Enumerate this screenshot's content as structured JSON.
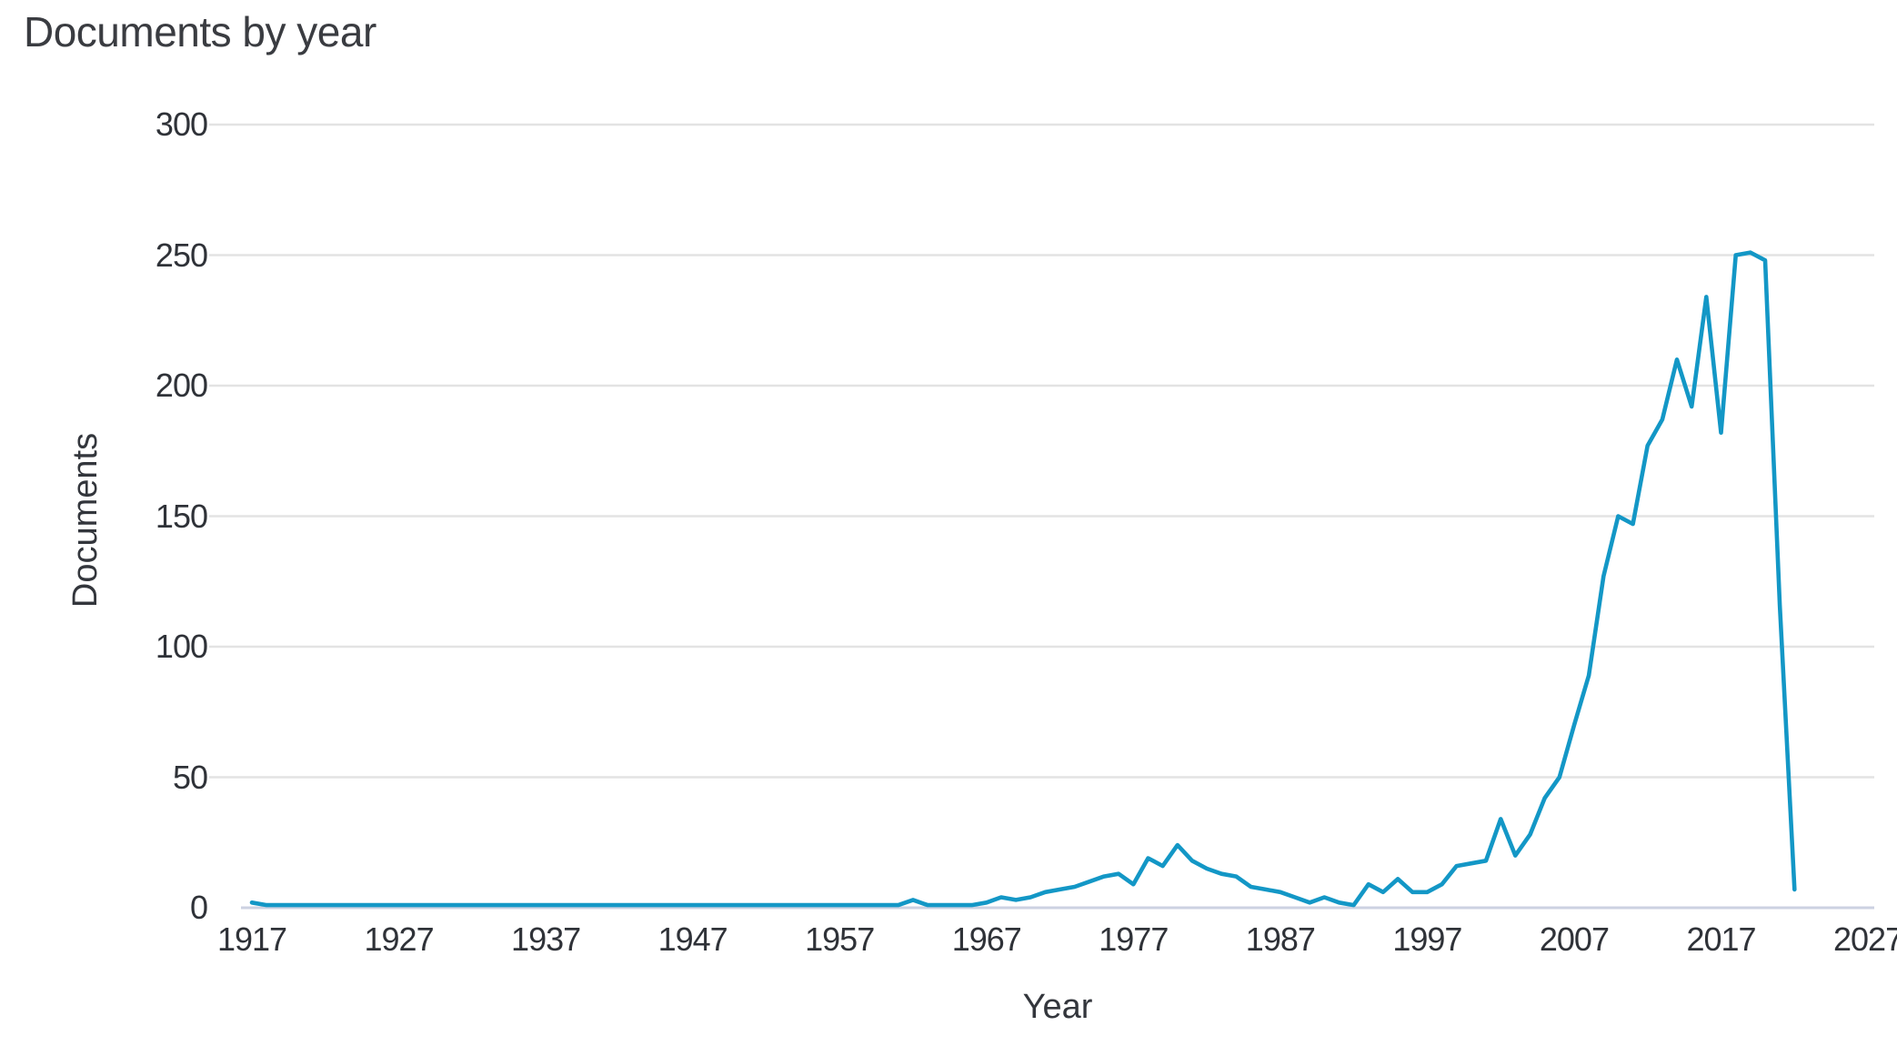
{
  "title": "Documents by year",
  "chart_data": {
    "type": "line",
    "title": "Documents by year",
    "xlabel": "Year",
    "ylabel": "Documents",
    "ylim": [
      0,
      300
    ],
    "xlim": [
      1917,
      2027
    ],
    "yticks": [
      0,
      50,
      100,
      150,
      200,
      250,
      300
    ],
    "xticks": [
      1917,
      1927,
      1937,
      1947,
      1957,
      1967,
      1977,
      1987,
      1997,
      2007,
      2017,
      2027
    ],
    "grid": "horizontal",
    "legend_position": "none",
    "line_color": "#1397c6",
    "gridline_color": "#e3e3e3",
    "baseline_color": "#ccd2e2",
    "series": [
      {
        "name": "Documents",
        "years": [
          1917,
          1918,
          1919,
          1920,
          1921,
          1922,
          1923,
          1924,
          1925,
          1926,
          1927,
          1928,
          1929,
          1930,
          1931,
          1932,
          1933,
          1934,
          1935,
          1936,
          1937,
          1938,
          1939,
          1940,
          1941,
          1942,
          1943,
          1944,
          1945,
          1946,
          1947,
          1948,
          1949,
          1950,
          1951,
          1952,
          1953,
          1954,
          1955,
          1956,
          1957,
          1958,
          1959,
          1960,
          1961,
          1962,
          1963,
          1964,
          1965,
          1966,
          1967,
          1968,
          1969,
          1970,
          1971,
          1972,
          1973,
          1974,
          1975,
          1976,
          1977,
          1978,
          1979,
          1980,
          1981,
          1982,
          1983,
          1984,
          1985,
          1986,
          1987,
          1988,
          1989,
          1990,
          1991,
          1992,
          1993,
          1994,
          1995,
          1996,
          1997,
          1998,
          1999,
          2000,
          2001,
          2002,
          2003,
          2004,
          2005,
          2006,
          2007,
          2008,
          2009,
          2010,
          2011,
          2012,
          2013,
          2014,
          2015,
          2016,
          2017,
          2018,
          2019,
          2020,
          2021,
          2022
        ],
        "values": [
          2,
          1,
          1,
          1,
          1,
          1,
          1,
          1,
          1,
          1,
          1,
          1,
          1,
          1,
          1,
          1,
          1,
          1,
          1,
          1,
          1,
          1,
          1,
          1,
          1,
          1,
          1,
          1,
          1,
          1,
          1,
          1,
          1,
          1,
          1,
          1,
          1,
          1,
          1,
          1,
          1,
          1,
          1,
          1,
          1,
          3,
          1,
          1,
          1,
          1,
          2,
          4,
          3,
          4,
          6,
          7,
          8,
          10,
          12,
          13,
          9,
          19,
          16,
          24,
          18,
          15,
          13,
          12,
          8,
          7,
          6,
          4,
          2,
          4,
          2,
          1,
          9,
          6,
          11,
          6,
          6,
          9,
          16,
          17,
          18,
          34,
          20,
          28,
          42,
          50,
          70,
          89,
          127,
          150,
          147,
          177,
          187,
          210,
          192,
          234,
          182,
          250,
          251,
          248,
          116,
          7
        ]
      }
    ]
  }
}
